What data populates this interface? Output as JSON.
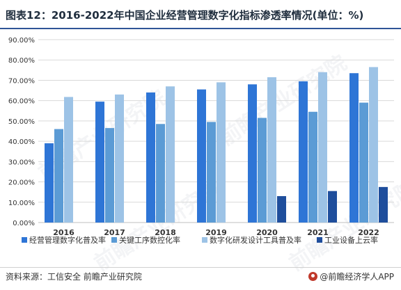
{
  "header": {
    "title": "图表12：2016-2022年中国企业经营管理数字化指标渗透率情况(单位：%)"
  },
  "watermark": {
    "text": "前瞻产业研究院"
  },
  "footer": {
    "source": "资料来源：工信安全  前瞻产业研究院",
    "brand": "@前瞻经济学人APP"
  },
  "chart_data": {
    "type": "bar",
    "categories": [
      "2016",
      "2017",
      "2018",
      "2019",
      "2020",
      "2021",
      "2022"
    ],
    "series": [
      {
        "name": "经营管理数字化普及率",
        "color": "#2e75d6",
        "values": [
          39.0,
          59.5,
          64.0,
          65.5,
          68.0,
          69.5,
          73.5
        ]
      },
      {
        "name": "关键工序数控化率",
        "color": "#5b9bd5",
        "values": [
          46.0,
          46.5,
          48.5,
          49.5,
          51.5,
          54.5,
          59.0
        ]
      },
      {
        "name": "数字化研发设计工具普及率",
        "color": "#9dc3e6",
        "values": [
          61.8,
          63.0,
          67.0,
          69.0,
          71.5,
          74.0,
          76.5
        ]
      },
      {
        "name": "工业设备上云率",
        "color": "#1f4e9c",
        "values": [
          null,
          null,
          null,
          null,
          13.0,
          15.5,
          17.5
        ]
      }
    ],
    "yticks": [
      "0.00%",
      "10.00%",
      "20.00%",
      "30.00%",
      "40.00%",
      "50.00%",
      "60.00%",
      "70.00%",
      "80.00%",
      "90.00%"
    ],
    "ylim": [
      0,
      90
    ],
    "xlabel": "",
    "ylabel": "",
    "grid": true,
    "legend_position": "bottom"
  }
}
